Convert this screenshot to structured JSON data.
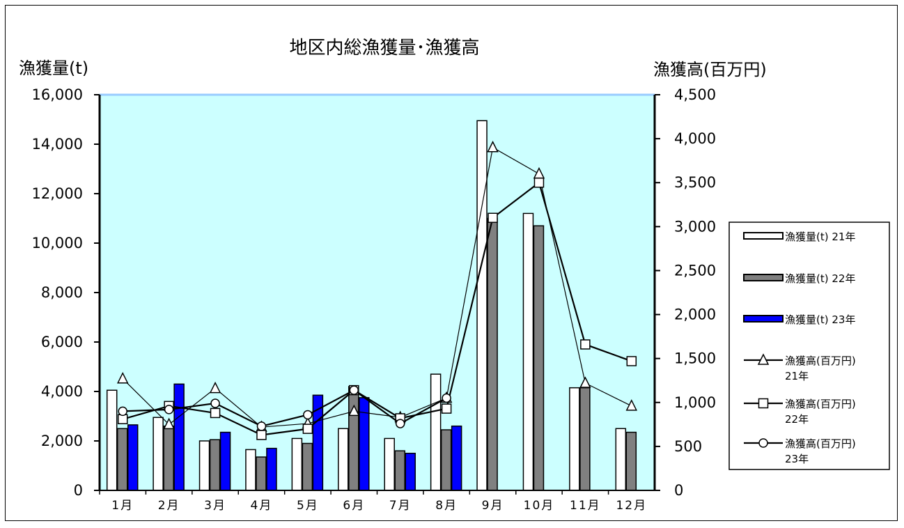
{
  "chart_data": {
    "type": "bar",
    "title": "地区内総漁獲量･漁獲高",
    "ylabel": "漁獲量(t)",
    "y2label": "漁獲高(百万円)",
    "ylim": [
      0,
      16000
    ],
    "y2lim": [
      0,
      4500
    ],
    "yticks": [
      "0",
      "2,000",
      "4,000",
      "6,000",
      "8,000",
      "10,000",
      "12,000",
      "14,000",
      "16,000"
    ],
    "y2ticks": [
      "0",
      "500",
      "1,000",
      "1,500",
      "2,000",
      "2,500",
      "3,000",
      "3,500",
      "4,000",
      "4,500"
    ],
    "categories": [
      "1月",
      "2月",
      "3月",
      "4月",
      "5月",
      "6月",
      "7月",
      "8月",
      "9月",
      "10月",
      "11月",
      "12月"
    ],
    "bar_series": [
      {
        "name": "漁獲量(t) 21年",
        "color": "#ffffff",
        "values": [
          4050,
          2950,
          2000,
          1650,
          2100,
          2500,
          2100,
          4700,
          14950,
          11200,
          4150,
          2500
        ]
      },
      {
        "name": "漁獲量(t) 22年",
        "color": "#808080",
        "values": [
          2500,
          2600,
          2050,
          1350,
          1900,
          4200,
          1600,
          2450,
          11000,
          10700,
          4150,
          2350
        ]
      },
      {
        "name": "漁獲量(t) 23年",
        "color": "#0000ff",
        "values": [
          2650,
          4300,
          2350,
          1700,
          3850,
          3750,
          1500,
          2600,
          null,
          null,
          null,
          null
        ]
      }
    ],
    "line_series": [
      {
        "name": "漁獲高(百万円)\n21年",
        "marker": "triangle",
        "values": [
          1270,
          750,
          1160,
          720,
          760,
          900,
          830,
          1050,
          3900,
          3600,
          1220,
          960
        ]
      },
      {
        "name": "漁獲高(百万円)\n22年",
        "marker": "square",
        "values": [
          810,
          960,
          880,
          630,
          700,
          1140,
          820,
          930,
          3100,
          3500,
          1660,
          1470
        ]
      },
      {
        "name": "漁獲高(百万円)\n23年",
        "marker": "circle",
        "values": [
          900,
          920,
          990,
          730,
          860,
          1140,
          760,
          1050,
          null,
          null,
          null,
          null
        ]
      }
    ],
    "legend_position": "right",
    "plot_background": "#ccffff"
  }
}
